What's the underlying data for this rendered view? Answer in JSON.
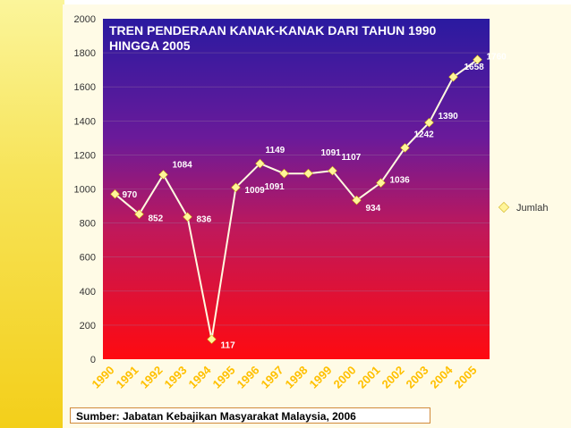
{
  "chart_data": {
    "type": "line",
    "title": "TREN PENDERAAN KANAK-KANAK DARI TAHUN 1990 HINGGA 2005",
    "title_lines": [
      "TREN PENDERAAN KANAK-KANAK DARI TAHUN 1990",
      "HINGGA 2005"
    ],
    "categories": [
      "1990",
      "1991",
      "1992",
      "1993",
      "1994",
      "1995",
      "1996",
      "1997",
      "1998",
      "1999",
      "2000",
      "2001",
      "2002",
      "2003",
      "2004",
      "2005"
    ],
    "series": [
      {
        "name": "Jumlah",
        "values": [
          970,
          852,
          1084,
          836,
          117,
          1009,
          1149,
          1091,
          1091,
          1107,
          934,
          1036,
          1242,
          1390,
          1658,
          1760
        ]
      }
    ],
    "ylim": [
      0,
      2000
    ],
    "yticks": [
      0,
      200,
      400,
      600,
      800,
      1000,
      1200,
      1400,
      1600,
      1800,
      2000
    ],
    "legend_position": "right",
    "colors": {
      "line": "#fffbe0",
      "marker": "#fff59a",
      "title": "#ffffff",
      "data_label": "#ffffff",
      "axis_text": "#333333",
      "category_text": "#ffc000",
      "gradient_top": "#2a1aa0",
      "gradient_bottom": "#ff0a10"
    }
  },
  "footer": {
    "source": "Sumber: Jabatan Kebajikan Masyarakat Malaysia, 2006"
  }
}
